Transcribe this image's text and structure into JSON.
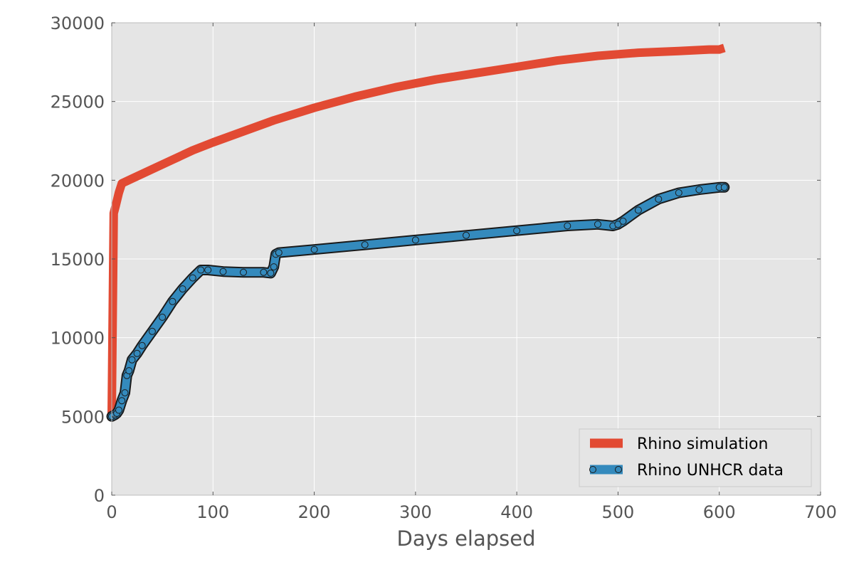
{
  "chart_data": {
    "type": "line",
    "title": "",
    "xlabel": "Days elapsed",
    "ylabel": "",
    "xlim": [
      0,
      700
    ],
    "ylim": [
      0,
      30000
    ],
    "xticks": [
      0,
      100,
      200,
      300,
      400,
      500,
      600,
      700
    ],
    "yticks": [
      0,
      5000,
      10000,
      15000,
      20000,
      25000,
      30000
    ],
    "xtick_labels": [
      "0",
      "100",
      "200",
      "300",
      "400",
      "500",
      "600",
      "700"
    ],
    "ytick_labels": [
      "0",
      "5000",
      "10000",
      "15000",
      "20000",
      "25000",
      "30000"
    ],
    "grid": true,
    "legend_position": "bottom-right",
    "series": [
      {
        "name": "Rhino simulation",
        "color": "#e24a33",
        "marker": "none",
        "x": [
          0,
          2,
          4,
          7,
          10,
          20,
          40,
          60,
          80,
          100,
          130,
          160,
          200,
          240,
          280,
          320,
          360,
          400,
          440,
          480,
          520,
          560,
          590,
          600,
          605
        ],
        "y": [
          5200,
          17900,
          18400,
          19200,
          19800,
          20100,
          20700,
          21300,
          21900,
          22400,
          23100,
          23800,
          24600,
          25300,
          25900,
          26400,
          26800,
          27200,
          27600,
          27900,
          28100,
          28200,
          28300,
          28300,
          28400
        ]
      },
      {
        "name": "Rhino UNHCR data",
        "color": "#348abd",
        "marker": "circle",
        "x": [
          0,
          3,
          5,
          7,
          10,
          13,
          15,
          17,
          20,
          25,
          30,
          40,
          50,
          60,
          70,
          80,
          88,
          95,
          110,
          130,
          150,
          157,
          160,
          162,
          165,
          200,
          250,
          300,
          350,
          400,
          450,
          480,
          495,
          500,
          505,
          520,
          540,
          560,
          580,
          600,
          605
        ],
        "y": [
          5000,
          5100,
          5200,
          5400,
          6000,
          6500,
          7600,
          7900,
          8600,
          9000,
          9500,
          10400,
          11300,
          12300,
          13100,
          13800,
          14300,
          14300,
          14200,
          14150,
          14150,
          14100,
          14500,
          15300,
          15400,
          15600,
          15900,
          16200,
          16500,
          16800,
          17100,
          17200,
          17100,
          17200,
          17400,
          18100,
          18800,
          19200,
          19400,
          19550,
          19550
        ]
      }
    ]
  }
}
